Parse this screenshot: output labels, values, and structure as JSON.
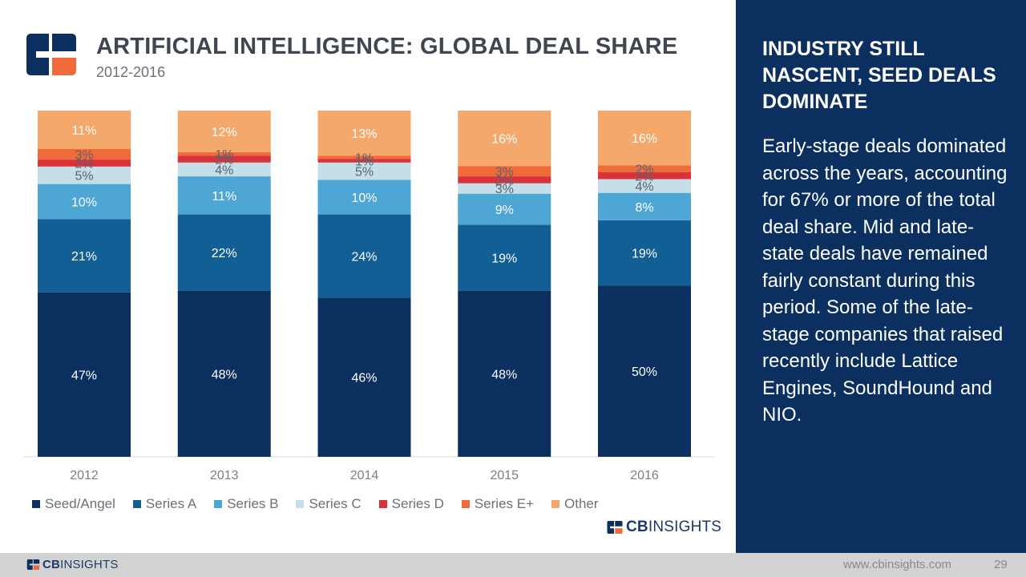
{
  "header": {
    "title": "ARTIFICIAL INTELLIGENCE: GLOBAL DEAL SHARE",
    "subtitle": "2012-2016",
    "logo_icon": "cb-insights-logo-icon"
  },
  "colors": {
    "seed_angel": "#0b2f5e",
    "series_a": "#125f96",
    "series_b": "#4ea6d4",
    "series_c": "#c5dfe8",
    "series_d": "#d9323a",
    "series_e_plus": "#f06a3a",
    "other": "#f4a86c",
    "panel_bg": "#0b2f5e",
    "logo_orange": "#f06a3a"
  },
  "chart_data": {
    "type": "bar",
    "stacked": true,
    "normalized": true,
    "title": "ARTIFICIAL INTELLIGENCE: GLOBAL DEAL SHARE",
    "subtitle": "2012-2016",
    "xlabel": "",
    "ylabel": "",
    "categories": [
      "2012",
      "2013",
      "2014",
      "2015",
      "2016"
    ],
    "legend_position": "bottom",
    "series": [
      {
        "name": "Seed/Angel",
        "values": [
          47,
          48,
          46,
          48,
          50
        ],
        "labels": [
          "47%",
          "48%",
          "46%",
          "48%",
          "50%"
        ]
      },
      {
        "name": "Series A",
        "values": [
          21,
          22,
          24,
          19,
          19
        ],
        "labels": [
          "21%",
          "22%",
          "24%",
          "19%",
          "19%"
        ]
      },
      {
        "name": "Series B",
        "values": [
          10,
          11,
          10,
          9,
          8
        ],
        "labels": [
          "10%",
          "11%",
          "10%",
          "9%",
          "8%"
        ]
      },
      {
        "name": "Series C",
        "values": [
          5,
          4,
          5,
          3,
          4
        ],
        "labels": [
          "5%",
          "4%",
          "5%",
          "3%",
          "4%"
        ]
      },
      {
        "name": "Series D",
        "values": [
          2,
          2,
          1,
          2,
          2
        ],
        "labels": [
          "2%",
          "2%",
          "1%",
          "2%",
          "2%"
        ]
      },
      {
        "name": "Series E+",
        "values": [
          3,
          1,
          1,
          3,
          2
        ],
        "labels": [
          "3%",
          "1%",
          "1%",
          "3%",
          "2%"
        ]
      },
      {
        "name": "Other",
        "values": [
          11,
          12,
          13,
          16,
          16
        ],
        "labels": [
          "11%",
          "12%",
          "13%",
          "16%",
          "16%"
        ]
      }
    ]
  },
  "brand": {
    "prefix": "CB",
    "suffix": "INSIGHTS",
    "icon": "cb-insights-small-logo-icon"
  },
  "panel": {
    "heading": "INDUSTRY STILL NASCENT, SEED DEALS DOMINATE",
    "body": "Early-stage deals dominated across the years, accounting for 67% or more of the total deal share. Mid and late-state deals have remained fairly constant during this period. Some of the late-stage companies that raised recently include Lattice Engines, SoundHound and NIO."
  },
  "footer": {
    "url": "www.cbinsights.com",
    "page_number": "29"
  }
}
